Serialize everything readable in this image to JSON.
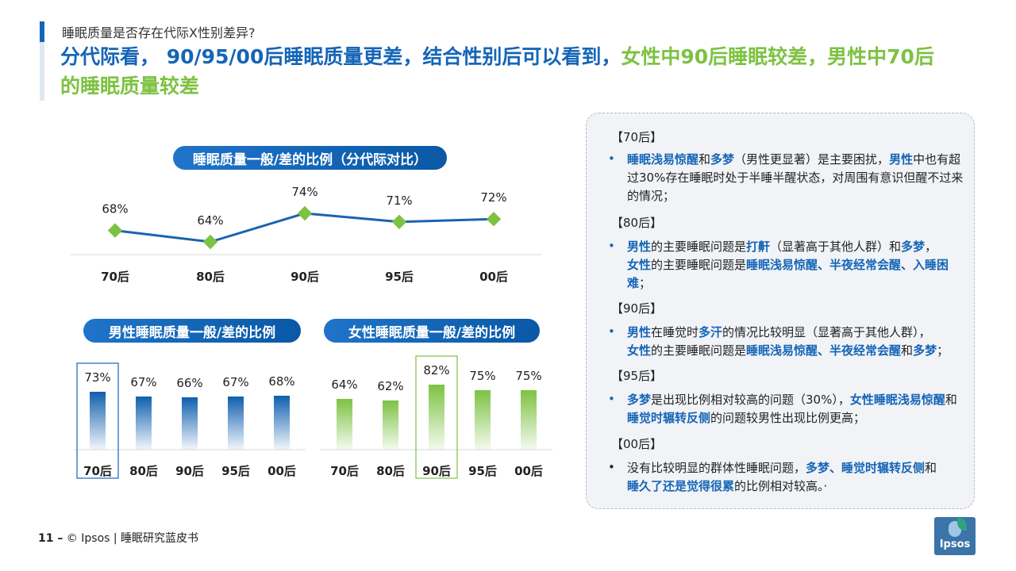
{
  "header": {
    "subtitle": "睡眠质量是否存在代际X性别差异?",
    "title_part1": "分代际看， 90/95/00后睡眠质量更差，结合性别后可以看到，",
    "title_part2": "女性中90后睡眠较差，男性中70后的睡眠质量较差"
  },
  "colors": {
    "blue": "#1565b7",
    "green": "#7dc242",
    "line": "#1a63b0",
    "marker": "#7dc242"
  },
  "chart_data": [
    {
      "type": "line",
      "title": "睡眠质量一般/差的比例（分代际对比）",
      "categories": [
        "70后",
        "80后",
        "90后",
        "95后",
        "00后"
      ],
      "values": [
        68,
        64,
        74,
        71,
        72
      ],
      "labels": [
        "68%",
        "64%",
        "74%",
        "71%",
        "72%"
      ]
    },
    {
      "type": "bar",
      "title": "男性睡眠质量一般/差的比例",
      "categories": [
        "70后",
        "80后",
        "90后",
        "95后",
        "00后"
      ],
      "values": [
        73,
        67,
        66,
        67,
        68
      ],
      "labels": [
        "73%",
        "67%",
        "66%",
        "67%",
        "68%"
      ],
      "highlight_index": 0
    },
    {
      "type": "bar",
      "title": "女性睡眠质量一般/差的比例",
      "categories": [
        "70后",
        "80后",
        "90后",
        "95后",
        "00后"
      ],
      "values": [
        64,
        62,
        82,
        75,
        75
      ],
      "labels": [
        "64%",
        "62%",
        "82%",
        "75%",
        "75%"
      ],
      "highlight_index": 2
    }
  ],
  "panel": {
    "s70": {
      "title": "【70后】",
      "t1": "睡眠浅易惊醒",
      "t2": "和",
      "t3": "多梦",
      "t4": "（男性更显著）是主要困扰，",
      "t5": "男性",
      "t6": "中也有超过30%存在睡眠时处于半睡半醒状态，对周围有意识但醒不过来的情况；"
    },
    "s80": {
      "title": "【80后】",
      "t1": "男性",
      "t2": "的主要睡眠问题是",
      "t3": "打鼾",
      "t4": "（显著高于其他人群）和",
      "t5": "多梦",
      "t6": "，",
      "t7": "女性",
      "t8": "的主要睡眠问题是",
      "t9": "睡眠浅易惊醒、半夜经常会醒、入睡困难",
      "t10": "；"
    },
    "s90": {
      "title": "【90后】",
      "t1": "男性",
      "t2": "在睡觉时",
      "t3": "多汗",
      "t4": "的情况比较明显（显著高于其他人群），",
      "t5": "女性",
      "t6": "的主要睡眠问题是",
      "t7": "睡眠浅易惊醒、半夜经常会醒",
      "t8": "和",
      "t9": "多梦",
      "t10": "；"
    },
    "s95": {
      "title": "【95后】",
      "t1": "多梦",
      "t2": "是出现比例相对较高的问题（30%），",
      "t3": "女性睡眠浅易惊醒",
      "t4": "和",
      "t5": "睡觉时辗转反侧",
      "t6": "的问题较男性出现比例更高；"
    },
    "s00": {
      "title": "【00后】",
      "t1": "没有比较明显的群体性睡眠问题，",
      "t2": "多梦、睡觉时辗转反侧",
      "t3": "和",
      "t4": "睡久了还是觉得很累",
      "t5": "的比例相对较高。·"
    },
    "bullet": "•"
  },
  "footer": {
    "page": "11 –",
    "source": " © Ipsos | 睡眠研究蓝皮书"
  },
  "logo": {
    "text": "Ipsos"
  }
}
